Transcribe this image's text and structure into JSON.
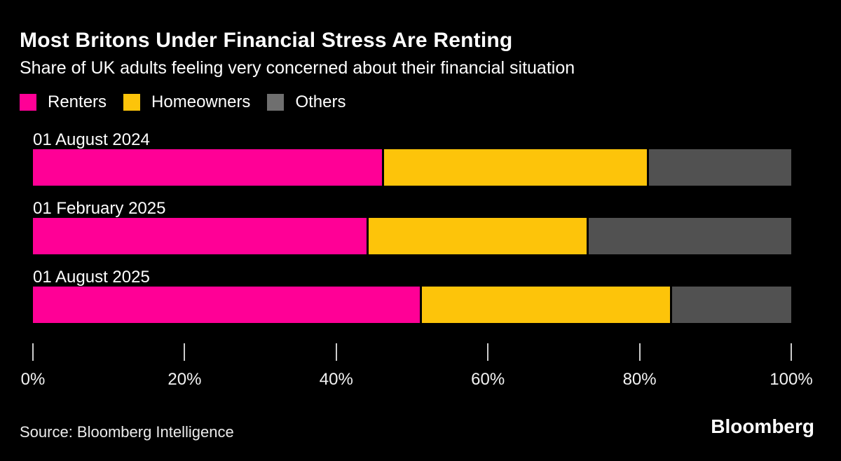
{
  "header": {
    "title": "Most Britons Under Financial Stress Are Renting",
    "subtitle": "Share of UK adults feeling very concerned about their financial situation"
  },
  "legend": {
    "items": [
      {
        "label": "Renters",
        "color": "#ff0096"
      },
      {
        "label": "Homeowners",
        "color": "#fdc40a"
      },
      {
        "label": "Others",
        "color": "#6f6f6f"
      }
    ]
  },
  "chart_data": {
    "type": "bar",
    "orientation": "horizontal",
    "stacked": true,
    "unit": "%",
    "title": "Most Britons Under Financial Stress Are Renting",
    "subtitle": "Share of UK adults feeling very concerned about their financial situation",
    "categories": [
      "01 August 2024",
      "01 February 2025",
      "01 August 2025"
    ],
    "series": [
      {
        "name": "Renters",
        "color": "#ff0096",
        "values": [
          46,
          44,
          51
        ]
      },
      {
        "name": "Homeowners",
        "color": "#fdc40a",
        "values": [
          35,
          29,
          33
        ]
      },
      {
        "name": "Others",
        "color": "#515151",
        "values": [
          19,
          27,
          16
        ]
      }
    ],
    "x_axis": {
      "range": [
        0,
        100
      ],
      "ticks": [
        {
          "value": 0,
          "label": "0%"
        },
        {
          "value": 20,
          "label": "20%"
        },
        {
          "value": 40,
          "label": "40%"
        },
        {
          "value": 60,
          "label": "60%"
        },
        {
          "value": 80,
          "label": "80%"
        },
        {
          "value": 100,
          "label": "100%"
        }
      ]
    },
    "xlabel": "",
    "ylabel": "",
    "grid": false,
    "legend_position": "top-left"
  },
  "footer": {
    "source": "Source: Bloomberg Intelligence",
    "logo": "Bloomberg"
  },
  "colors": {
    "background": "#000000",
    "text": "#ffffff",
    "tick": "#cccccc",
    "axis_text": "#f2f2f2"
  }
}
